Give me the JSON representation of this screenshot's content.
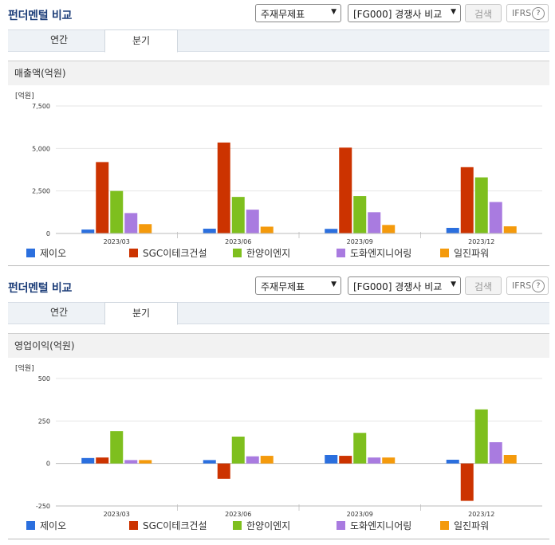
{
  "panels": [
    {
      "header": {
        "title": "펀더멘털 비교",
        "select1": "주재무제표",
        "select2": "[FG000] 경쟁사 비교",
        "search_label": "검색",
        "ifrs_label": "IFRS",
        "help": "?"
      },
      "tabs": [
        {
          "label": "연간"
        },
        {
          "label": "분기"
        }
      ],
      "active_tab": "분기",
      "chart_title": "매출액(억원)"
    },
    {
      "header": {
        "title": "펀더멘털 비교",
        "select1": "주재무제표",
        "select2": "[FG000] 경쟁사 비교",
        "search_label": "검색",
        "ifrs_label": "IFRS",
        "help": "?"
      },
      "tabs": [
        {
          "label": "연간"
        },
        {
          "label": "분기"
        }
      ],
      "active_tab": "분기",
      "chart_title": "영업이익(억원)"
    }
  ],
  "colors": {
    "제이오": "#2b6fde",
    "SGC이테크건설": "#cc3300",
    "한양이엔지": "#7ebf1e",
    "도화엔지니어링": "#a97be0",
    "일진파워": "#f49a0c"
  },
  "chart_data": [
    {
      "type": "bar",
      "unit_label": "[억원]",
      "categories": [
        "2023/03",
        "2023/06",
        "2023/09",
        "2023/12"
      ],
      "ylim": [
        0,
        7500
      ],
      "yticks": [
        "7,500",
        "5,000",
        "2,500",
        "0"
      ],
      "tick_values": [
        7500,
        5000,
        2500,
        0
      ],
      "series": [
        {
          "name": "제이오",
          "values": [
            230,
            280,
            270,
            330
          ]
        },
        {
          "name": "SGC이테크건설",
          "values": [
            4200,
            5350,
            5050,
            3900
          ]
        },
        {
          "name": "한양이엔지",
          "values": [
            2500,
            2150,
            2200,
            3300
          ]
        },
        {
          "name": "도화엔지니어링",
          "values": [
            1200,
            1400,
            1250,
            1850
          ]
        },
        {
          "name": "일진파워",
          "values": [
            550,
            400,
            500,
            420
          ]
        }
      ]
    },
    {
      "type": "bar",
      "unit_label": "[억원]",
      "categories": [
        "2023/03",
        "2023/06",
        "2023/09",
        "2023/12"
      ],
      "ylim": [
        -250,
        500
      ],
      "yticks": [
        "500",
        "250",
        "0",
        "-250"
      ],
      "tick_values": [
        500,
        250,
        0,
        -250
      ],
      "series": [
        {
          "name": "제이오",
          "values": [
            32,
            20,
            50,
            22
          ]
        },
        {
          "name": "SGC이테크건설",
          "values": [
            35,
            -90,
            45,
            -220
          ]
        },
        {
          "name": "한양이엔지",
          "values": [
            190,
            158,
            180,
            318
          ]
        },
        {
          "name": "도화엔지니어링",
          "values": [
            20,
            42,
            35,
            125
          ]
        },
        {
          "name": "일진파워",
          "values": [
            20,
            45,
            35,
            50
          ]
        }
      ]
    }
  ]
}
